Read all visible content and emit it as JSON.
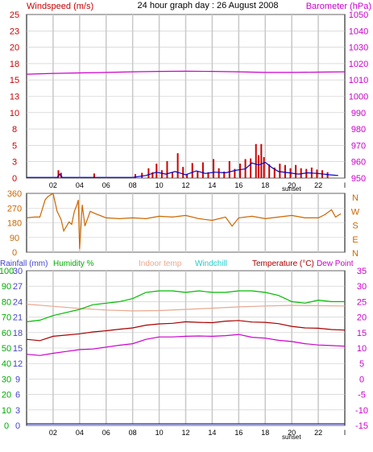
{
  "header": {
    "left_title": "Windspeed (m/s)",
    "center_title": "24 hour graph day : 26 August 2008",
    "right_title": "Barometer (hPa)"
  },
  "second_header": {
    "rainfall": "Rainfall (mm)",
    "humidity": "Humidity %",
    "indoor": "Indoor temp",
    "windchill": "Windchill",
    "temperature": "Temperature (°C)",
    "dewpoint": "Dew Point"
  },
  "colors": {
    "windspeed": "#cc0000",
    "gust": "#0000cc",
    "barometer": "#cc00cc",
    "direction": "#cc6600",
    "humidity": "#00bb00",
    "indoor": "#e8a890",
    "windchill": "#22cccc",
    "temperature": "#aa0000",
    "dewpoint": "#cc00cc",
    "rainfall": "#2222cc",
    "title_red": "#cc0000",
    "grid": "#c8c8c8"
  },
  "x_ticks": [
    "02",
    "04",
    "06",
    "08",
    "10",
    "12",
    "14",
    "16",
    "18",
    "20",
    "22",
    "l"
  ],
  "sunset_label": "sunset",
  "chart_data": [
    {
      "type": "line",
      "title": "24 hour graph day : 26 August 2008",
      "ylabel": "Windspeed (m/s)",
      "y2label": "Barometer (hPa)",
      "xlim": [
        0,
        24
      ],
      "ylim": [
        0,
        25
      ],
      "y2lim": [
        950,
        1050
      ],
      "yticks": [
        "25",
        "23",
        "20",
        "18",
        "15",
        "13",
        "10",
        "8",
        "5",
        "3",
        "0"
      ],
      "y2ticks": [
        "1050",
        "1040",
        "1030",
        "1020",
        "1010",
        "1000",
        "990",
        "980",
        "970",
        "960",
        "950"
      ],
      "series": [
        {
          "name": "Windspeed (m/s)",
          "kind": "bars",
          "x": [
            2.4,
            2.6,
            5.1,
            8.2,
            8.7,
            9.2,
            9.5,
            9.8,
            10.2,
            10.6,
            11.0,
            11.4,
            11.8,
            12.1,
            12.5,
            12.9,
            13.3,
            13.7,
            14.1,
            14.5,
            14.9,
            15.3,
            15.7,
            16.1,
            16.5,
            16.9,
            17.3,
            17.5,
            17.7,
            17.9,
            18.3,
            18.7,
            19.1,
            19.5,
            19.9,
            20.3,
            20.7,
            21.1,
            21.5,
            21.9,
            22.3,
            22.7
          ],
          "values": [
            1.2,
            0.8,
            0.7,
            0.6,
            0.8,
            1.5,
            0.9,
            2.2,
            1.2,
            2.6,
            0.9,
            3.8,
            1.7,
            0.6,
            2.3,
            1.1,
            2.4,
            0.9,
            2.9,
            1.5,
            1.0,
            2.6,
            1.4,
            2.2,
            2.9,
            3.0,
            5.2,
            3.5,
            5.2,
            3.2,
            2.1,
            1.6,
            2.2,
            2.0,
            1.5,
            2.0,
            1.5,
            1.4,
            1.6,
            1.3,
            1.2,
            0.9
          ]
        },
        {
          "name": "Gust",
          "kind": "line",
          "x": [
            0,
            2.3,
            2.5,
            2.7,
            8.0,
            9.0,
            9.8,
            10.5,
            11.2,
            12.0,
            12.8,
            13.5,
            14.2,
            15.0,
            15.8,
            16.5,
            17.0,
            17.5,
            18.0,
            18.5,
            19.0,
            19.8,
            20.5,
            21.2,
            22.0,
            22.8,
            23.5
          ],
          "values": [
            0.1,
            0.1,
            0.6,
            0.1,
            0.1,
            0.4,
            0.9,
            0.6,
            1.0,
            0.5,
            1.1,
            0.7,
            0.9,
            0.8,
            1.2,
            1.4,
            2.3,
            2.0,
            2.4,
            1.6,
            1.0,
            0.8,
            0.6,
            0.8,
            0.7,
            0.5,
            0.4
          ]
        },
        {
          "name": "Barometer (hPa)",
          "axis": "right",
          "kind": "line",
          "x": [
            0,
            2,
            4,
            6,
            8,
            10,
            12,
            14,
            16,
            18,
            20,
            22,
            24
          ],
          "values": [
            1013.5,
            1014.0,
            1014.3,
            1014.6,
            1015.0,
            1015.2,
            1015.3,
            1015.2,
            1015.0,
            1014.6,
            1014.6,
            1014.8,
            1015.0
          ]
        }
      ]
    },
    {
      "type": "line",
      "ylabel": "Wind direction",
      "xlim": [
        0,
        24
      ],
      "ylim": [
        0,
        360
      ],
      "yticks": [
        "360",
        "270",
        "180",
        "90",
        "0"
      ],
      "y2ticks": [
        "N",
        "W",
        "S",
        "E",
        "N"
      ],
      "series": [
        {
          "name": "Wind direction",
          "x": [
            0,
            0.6,
            1.0,
            1.4,
            1.6,
            2.0,
            2.3,
            2.6,
            2.8,
            3.2,
            3.4,
            3.6,
            3.8,
            3.9,
            4.0,
            4.2,
            4.4,
            4.8,
            5.2,
            6,
            7,
            8,
            9,
            10,
            11,
            12,
            13,
            14,
            15,
            15.5,
            16,
            17,
            18,
            19,
            20,
            21,
            22,
            22.5,
            23,
            23.3,
            23.7
          ],
          "values": [
            210,
            215,
            215,
            320,
            340,
            360,
            250,
            200,
            130,
            185,
            170,
            250,
            290,
            320,
            20,
            290,
            160,
            250,
            235,
            210,
            205,
            210,
            205,
            220,
            215,
            225,
            205,
            195,
            215,
            160,
            210,
            220,
            205,
            215,
            225,
            210,
            210,
            230,
            260,
            215,
            235
          ]
        }
      ]
    },
    {
      "type": "line",
      "xlim": [
        0,
        24
      ],
      "ylim": [
        -15,
        35
      ],
      "yticks_left_green": [
        "100",
        "90",
        "80",
        "70",
        "60",
        "50",
        "40",
        "30",
        "20",
        "10",
        "0"
      ],
      "yticks_left_blue": [
        "30",
        "27",
        "24",
        "21",
        "18",
        "15",
        "12",
        "9",
        "6",
        "3",
        "0"
      ],
      "yticks_right": [
        "35",
        "30",
        "25",
        "20",
        "15",
        "10",
        "5",
        "0",
        "-5",
        "-10",
        "-15"
      ],
      "series": [
        {
          "name": "Indoor temp",
          "x": [
            0,
            2,
            4,
            6,
            8,
            10,
            12,
            14,
            16,
            18,
            20,
            22,
            24
          ],
          "values": [
            24.2,
            23.5,
            22.8,
            22.3,
            22.0,
            22.1,
            22.5,
            22.9,
            23.3,
            23.6,
            23.8,
            23.7,
            23.6
          ]
        },
        {
          "name": "Humidity %",
          "scale": "percent",
          "x": [
            0,
            1,
            2,
            3,
            4,
            5,
            6,
            7,
            8,
            9,
            10,
            11,
            12,
            13,
            14,
            15,
            16,
            17,
            18,
            19,
            20,
            21,
            22,
            23,
            24
          ],
          "values": [
            67,
            68,
            71,
            73,
            75,
            78,
            79,
            80,
            82,
            86,
            87,
            87,
            86,
            87,
            86,
            86,
            87,
            87,
            86,
            84,
            80,
            79,
            81,
            80,
            80
          ]
        },
        {
          "name": "Temperature (°C)",
          "x": [
            0,
            1,
            2,
            3,
            4,
            5,
            6,
            7,
            8,
            9,
            10,
            11,
            12,
            13,
            14,
            15,
            16,
            17,
            18,
            19,
            20,
            21,
            22,
            23,
            24
          ],
          "values": [
            12.8,
            12.4,
            13.8,
            14.2,
            14.6,
            15.2,
            15.6,
            16.1,
            16.5,
            17.4,
            17.8,
            18.0,
            18.5,
            18.3,
            18.2,
            18.7,
            18.9,
            18.4,
            18.3,
            17.9,
            17.0,
            16.5,
            16.4,
            16.0,
            15.8
          ]
        },
        {
          "name": "Dew Point",
          "x": [
            0,
            1,
            2,
            3,
            4,
            5,
            6,
            7,
            8,
            9,
            10,
            11,
            12,
            13,
            14,
            15,
            16,
            17,
            18,
            19,
            20,
            21,
            22,
            23,
            24
          ],
          "values": [
            8.0,
            7.6,
            8.3,
            8.9,
            9.5,
            9.7,
            10.3,
            10.9,
            11.4,
            12.8,
            13.6,
            13.6,
            13.8,
            13.9,
            13.8,
            14.0,
            14.4,
            13.5,
            13.2,
            12.5,
            12.1,
            11.4,
            11.0,
            10.8,
            10.6
          ]
        },
        {
          "name": "Rainfall (mm)",
          "scale": "mm",
          "x": [
            0,
            24
          ],
          "values": [
            0,
            0
          ]
        }
      ]
    }
  ]
}
